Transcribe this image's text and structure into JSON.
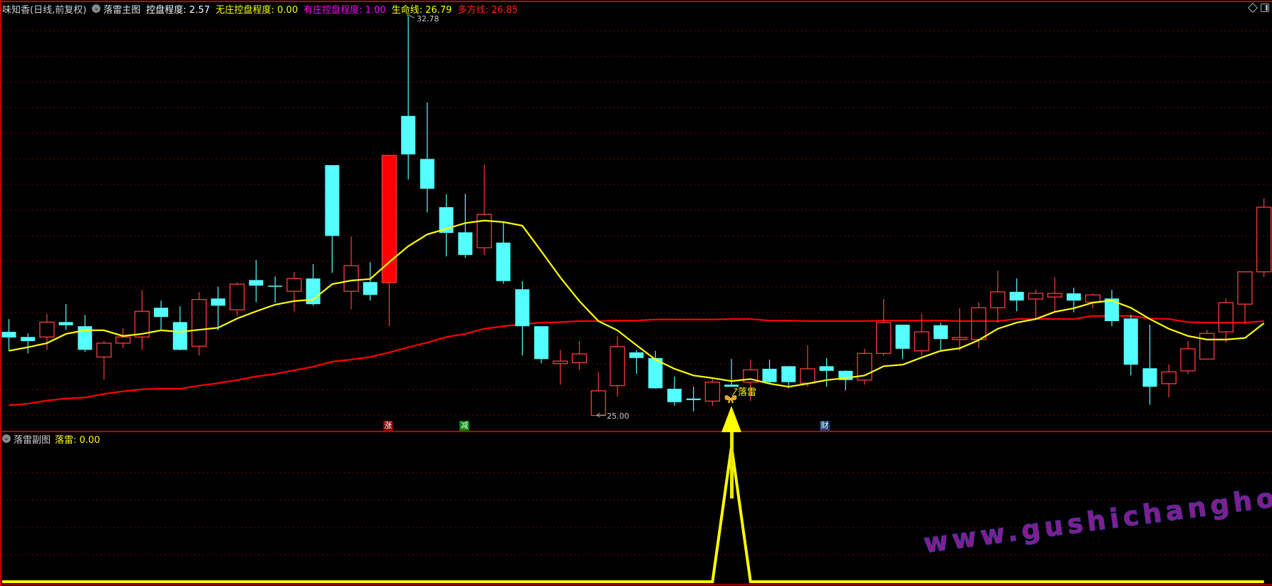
{
  "header": {
    "stock": "味知香(日线,前复权)",
    "indicator_name": "落雷主图",
    "control_label": "控盘程度: 2.57",
    "no_dealer_label": "无庄控盘程度: 0.00",
    "dealer_label": "有庄控盘程度: 1.00",
    "life_line_label": "生命线: 26.79",
    "bull_line_label": "多方线: 26.85"
  },
  "sub_header": {
    "indicator_name": "落雷副图",
    "value_label": "落雷: 0.00"
  },
  "colors": {
    "up": "#FF3C3C",
    "down": "#54FFFF",
    "life_line": "#FFFF00",
    "bull_line": "#FF0000",
    "grid": "#A00000",
    "border": "#C00000",
    "signal": "#FFFF00"
  },
  "icons": [
    "chevron-down-circle-icon",
    "diamond-icon",
    "panel-toggle-icon",
    "butterfly-icon",
    "arrow-up-icon"
  ],
  "watermark": "www.gushichanghong.com",
  "chart_data": [
    {
      "type": "candlestick",
      "ylim": [
        25.0,
        32.78
      ],
      "grid": true,
      "high_marker": "32.78",
      "low_marker": "25.00",
      "candles_ohlc": [
        [
          26.63,
          26.88,
          26.26,
          26.52
        ],
        [
          26.53,
          26.6,
          26.21,
          26.45
        ],
        [
          26.53,
          26.98,
          26.28,
          26.82
        ],
        [
          26.82,
          27.17,
          26.67,
          26.76
        ],
        [
          26.74,
          26.96,
          26.24,
          26.28
        ],
        [
          26.14,
          26.45,
          25.7,
          26.41
        ],
        [
          26.41,
          26.7,
          26.31,
          26.53
        ],
        [
          26.53,
          27.44,
          26.28,
          27.03
        ],
        [
          27.1,
          27.24,
          26.67,
          26.92
        ],
        [
          26.82,
          27.13,
          26.27,
          26.28
        ],
        [
          26.35,
          27.41,
          26.17,
          27.26
        ],
        [
          27.28,
          27.51,
          26.66,
          27.14
        ],
        [
          27.06,
          27.59,
          26.94,
          27.56
        ],
        [
          27.64,
          28.03,
          27.21,
          27.53
        ],
        [
          27.53,
          27.71,
          27.2,
          27.51
        ],
        [
          27.42,
          27.8,
          27.03,
          27.67
        ],
        [
          27.67,
          27.95,
          27.14,
          27.17
        ],
        [
          29.88,
          29.88,
          27.78,
          28.5
        ],
        [
          27.42,
          28.49,
          27.07,
          27.92
        ],
        [
          27.6,
          27.99,
          27.24,
          27.35
        ],
        [
          27.59,
          30.07,
          26.74,
          30.07
        ],
        [
          30.84,
          32.78,
          29.6,
          30.09
        ],
        [
          30.0,
          31.1,
          28.96,
          29.42
        ],
        [
          29.06,
          29.31,
          28.1,
          28.56
        ],
        [
          28.57,
          29.32,
          28.07,
          28.13
        ],
        [
          28.27,
          29.89,
          28.13,
          28.92
        ],
        [
          28.37,
          28.77,
          27.57,
          27.62
        ],
        [
          27.46,
          27.62,
          26.17,
          26.74
        ],
        [
          26.74,
          26.74,
          26.02,
          26.1
        ],
        [
          26.01,
          26.28,
          25.6,
          26.06
        ],
        [
          26.03,
          26.45,
          25.89,
          26.2
        ],
        [
          25.0,
          25.85,
          25.0,
          25.48
        ],
        [
          25.58,
          26.55,
          25.37,
          26.34
        ],
        [
          26.23,
          26.27,
          25.81,
          26.12
        ],
        [
          26.12,
          26.26,
          25.52,
          25.53
        ],
        [
          25.52,
          25.76,
          25.19,
          25.26
        ],
        [
          25.33,
          25.56,
          25.08,
          25.3
        ],
        [
          25.28,
          25.71,
          25.19,
          25.65
        ],
        [
          25.6,
          26.1,
          25.56,
          25.56
        ],
        [
          25.65,
          26.09,
          25.28,
          25.89
        ],
        [
          25.91,
          26.09,
          25.63,
          25.65
        ],
        [
          25.96,
          25.96,
          25.53,
          25.65
        ],
        [
          25.63,
          26.37,
          25.56,
          25.91
        ],
        [
          25.96,
          26.12,
          25.56,
          25.87
        ],
        [
          25.87,
          25.88,
          25.49,
          25.69
        ],
        [
          25.69,
          26.3,
          25.6,
          26.21
        ],
        [
          26.21,
          27.27,
          26.16,
          26.81
        ],
        [
          26.77,
          26.77,
          26.1,
          26.3
        ],
        [
          26.26,
          26.98,
          26.16,
          26.63
        ],
        [
          26.76,
          26.81,
          26.28,
          26.49
        ],
        [
          26.48,
          27.09,
          26.26,
          26.52
        ],
        [
          26.48,
          27.21,
          26.31,
          27.1
        ],
        [
          27.1,
          27.82,
          26.81,
          27.41
        ],
        [
          27.41,
          27.67,
          27.03,
          27.24
        ],
        [
          27.27,
          27.45,
          26.89,
          27.38
        ],
        [
          27.31,
          27.69,
          27.01,
          27.38
        ],
        [
          27.38,
          27.49,
          27.01,
          27.24
        ],
        [
          27.21,
          27.38,
          27.09,
          27.35
        ],
        [
          27.28,
          27.45,
          26.74,
          26.84
        ],
        [
          26.89,
          26.96,
          25.78,
          25.99
        ],
        [
          25.92,
          26.77,
          25.21,
          25.56
        ],
        [
          25.62,
          25.99,
          25.35,
          25.85
        ],
        [
          25.87,
          26.45,
          25.81,
          26.3
        ],
        [
          26.1,
          26.67,
          26.1,
          26.6
        ],
        [
          26.63,
          27.28,
          26.42,
          27.2
        ],
        [
          27.17,
          27.8,
          26.77,
          27.8
        ],
        [
          27.8,
          29.23,
          27.7,
          29.06
        ]
      ],
      "solid_up_indices": [
        20
      ],
      "series": [
        {
          "name": "生命线",
          "color": "#FFFF00",
          "values": [
            26.26,
            26.33,
            26.41,
            26.59,
            26.66,
            26.66,
            26.55,
            26.59,
            26.66,
            26.63,
            26.67,
            26.71,
            26.89,
            27.03,
            27.16,
            27.23,
            27.26,
            27.56,
            27.63,
            27.66,
            27.99,
            28.3,
            28.53,
            28.64,
            28.75,
            28.8,
            28.77,
            28.7,
            28.2,
            27.69,
            27.23,
            26.84,
            26.66,
            26.37,
            26.09,
            25.91,
            25.78,
            25.73,
            25.67,
            25.71,
            25.62,
            25.56,
            25.62,
            25.69,
            25.73,
            25.78,
            25.96,
            25.99,
            26.13,
            26.26,
            26.31,
            26.47,
            26.69,
            26.81,
            26.88,
            27.02,
            27.09,
            27.2,
            27.24,
            27.1,
            26.88,
            26.69,
            26.55,
            26.48,
            26.48,
            26.51,
            26.8
          ]
        },
        {
          "name": "多方线",
          "color": "#FF0000",
          "values": [
            25.2,
            25.23,
            25.29,
            25.33,
            25.35,
            25.42,
            25.47,
            25.51,
            25.52,
            25.52,
            25.58,
            25.63,
            25.69,
            25.76,
            25.81,
            25.88,
            25.95,
            26.05,
            26.09,
            26.14,
            26.23,
            26.33,
            26.42,
            26.53,
            26.59,
            26.69,
            26.74,
            26.78,
            26.81,
            26.82,
            26.84,
            26.84,
            26.85,
            26.85,
            26.87,
            26.87,
            26.87,
            26.87,
            26.88,
            26.88,
            26.85,
            26.85,
            26.84,
            26.84,
            26.84,
            26.84,
            26.85,
            26.85,
            26.85,
            26.85,
            26.84,
            26.84,
            26.84,
            26.88,
            26.88,
            26.88,
            26.88,
            26.94,
            26.94,
            26.94,
            26.89,
            26.88,
            26.82,
            26.81,
            26.81,
            26.81,
            26.84
          ]
        }
      ],
      "annotations": [
        {
          "index": 20,
          "text": "涨",
          "bg": "#800000"
        },
        {
          "index": 24,
          "text": "减",
          "bg": "#008000"
        },
        {
          "index": 43,
          "text": "财",
          "bg": "#1A3F73"
        },
        {
          "index": 38,
          "text": "落雷",
          "color": "#FFFF00"
        }
      ]
    },
    {
      "type": "line",
      "name": "落雷",
      "ylim": [
        0,
        1
      ],
      "values": [
        0,
        0,
        0,
        0,
        0,
        0,
        0,
        0,
        0,
        0,
        0,
        0,
        0,
        0,
        0,
        0,
        0,
        0,
        0,
        0,
        0,
        0,
        0,
        0,
        0,
        0,
        0,
        0,
        0,
        0,
        0,
        0,
        0,
        0,
        0,
        0,
        0,
        0,
        1,
        0,
        0,
        0,
        0,
        0,
        0,
        0,
        0,
        0,
        0,
        0,
        0,
        0,
        0,
        0,
        0,
        0,
        0,
        0,
        0,
        0,
        0,
        0,
        0,
        0,
        0,
        0,
        0
      ]
    }
  ]
}
